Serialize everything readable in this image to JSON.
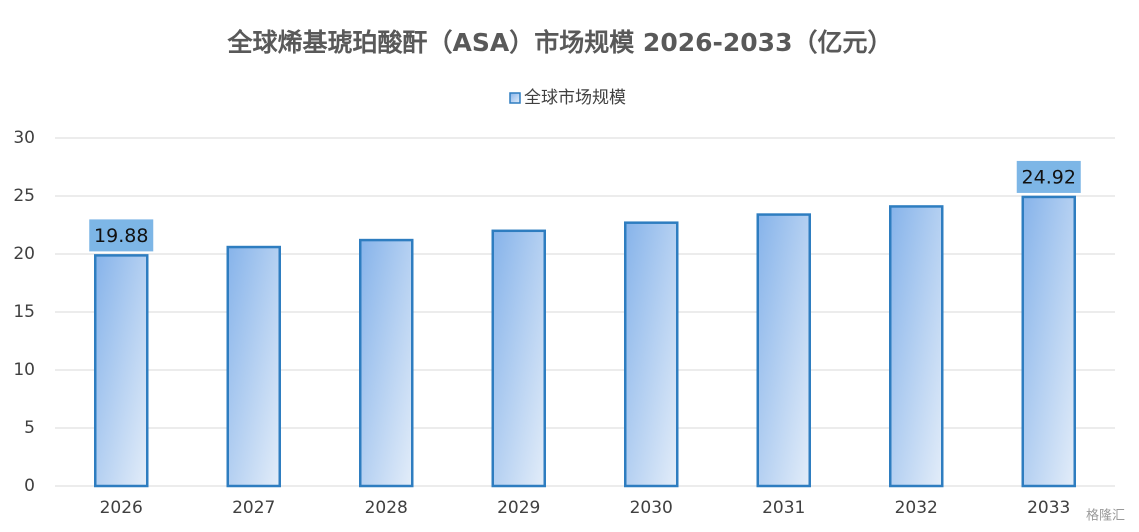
{
  "chart_data": {
    "type": "bar",
    "title": "全球烯基琥珀酸酐（ASA）市场规模 2026-2033（亿元）",
    "categories": [
      "2026",
      "2027",
      "2028",
      "2029",
      "2030",
      "2031",
      "2032",
      "2033"
    ],
    "series": [
      {
        "name": "全球市场规模",
        "color": "#2e7dc0",
        "values": [
          19.88,
          20.6,
          21.2,
          22.0,
          22.7,
          23.4,
          24.1,
          24.92
        ],
        "value_labels": [
          "19.88",
          null,
          null,
          null,
          null,
          null,
          null,
          "24.92"
        ]
      }
    ],
    "ylim": [
      0,
      30
    ],
    "yticks": [
      0,
      5,
      10,
      15,
      20,
      25,
      30
    ],
    "grid": true,
    "legend": "top",
    "watermark": "格隆汇"
  }
}
